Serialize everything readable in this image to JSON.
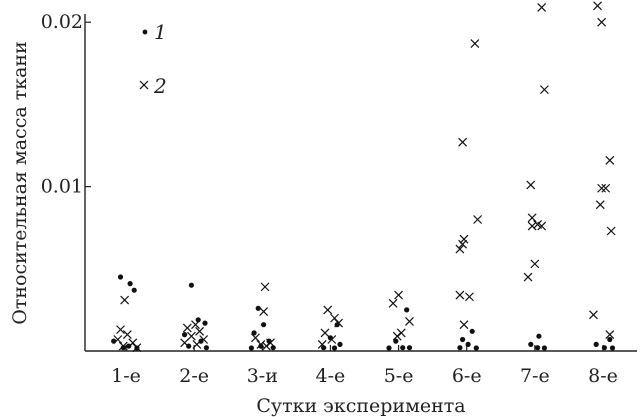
{
  "chart_data": {
    "type": "scatter",
    "xlabel": "Сутки эксперимента",
    "ylabel": "Относительная масса ткани",
    "categories": [
      "1-е",
      "2-е",
      "3-и",
      "4-е",
      "5-е",
      "6-е",
      "7-е",
      "8-е"
    ],
    "ylim": [
      0,
      0.0205
    ],
    "yticks": [
      {
        "value": 0.01,
        "label": "0.01"
      },
      {
        "value": 0.02,
        "label": "0.02"
      }
    ],
    "grid": false,
    "legend_position": "top-left",
    "series": [
      {
        "name": "1",
        "marker": "dot",
        "points": [
          {
            "x": "1-е",
            "y": 0.0045,
            "offset": -0.08
          },
          {
            "x": "1-е",
            "y": 0.0041,
            "offset": 0.06
          },
          {
            "x": "1-е",
            "y": 0.0037,
            "offset": 0.12
          },
          {
            "x": "1-е",
            "y": 0.0006,
            "offset": -0.18
          },
          {
            "x": "1-е",
            "y": 0.0003,
            "offset": 0.04
          },
          {
            "x": "1-е",
            "y": 0.0002,
            "offset": -0.04
          },
          {
            "x": "1-е",
            "y": 0.0001,
            "offset": 0.16
          },
          {
            "x": "2-е",
            "y": 0.004,
            "offset": -0.04
          },
          {
            "x": "2-е",
            "y": 0.0019,
            "offset": 0.06
          },
          {
            "x": "2-е",
            "y": 0.0017,
            "offset": 0.16
          },
          {
            "x": "2-е",
            "y": 0.001,
            "offset": -0.14
          },
          {
            "x": "2-е",
            "y": 0.0006,
            "offset": 0.1
          },
          {
            "x": "2-е",
            "y": 0.0003,
            "offset": -0.08
          },
          {
            "x": "2-е",
            "y": 0.0002,
            "offset": 0.18
          },
          {
            "x": "3-и",
            "y": 0.0026,
            "offset": -0.06
          },
          {
            "x": "3-и",
            "y": 0.0016,
            "offset": 0.02
          },
          {
            "x": "3-и",
            "y": 0.0011,
            "offset": -0.12
          },
          {
            "x": "3-и",
            "y": 0.0006,
            "offset": 0.1
          },
          {
            "x": "3-и",
            "y": 0.0003,
            "offset": -0.02
          },
          {
            "x": "3-и",
            "y": 0.0002,
            "offset": 0.16
          },
          {
            "x": "3-и",
            "y": 0.0001,
            "offset": -0.16
          },
          {
            "x": "4-е",
            "y": 0.0016,
            "offset": 0.1
          },
          {
            "x": "4-е",
            "y": 0.0008,
            "offset": 0.0
          },
          {
            "x": "4-е",
            "y": 0.0004,
            "offset": 0.14
          },
          {
            "x": "4-е",
            "y": 0.0002,
            "offset": -0.1
          },
          {
            "x": "4-е",
            "y": 0.0001,
            "offset": 0.06
          },
          {
            "x": "5-е",
            "y": 0.0025,
            "offset": 0.12
          },
          {
            "x": "5-е",
            "y": 0.0006,
            "offset": -0.04
          },
          {
            "x": "5-е",
            "y": 0.0002,
            "offset": 0.06
          },
          {
            "x": "5-е",
            "y": 0.0002,
            "offset": 0.16
          },
          {
            "x": "5-е",
            "y": 0.0001,
            "offset": -0.14
          },
          {
            "x": "6-е",
            "y": 0.0012,
            "offset": 0.08
          },
          {
            "x": "6-е",
            "y": 0.0007,
            "offset": -0.06
          },
          {
            "x": "6-е",
            "y": 0.0004,
            "offset": 0.02
          },
          {
            "x": "6-е",
            "y": 0.0002,
            "offset": -0.1
          },
          {
            "x": "6-е",
            "y": 0.0001,
            "offset": 0.14
          },
          {
            "x": "7-е",
            "y": 0.0009,
            "offset": 0.06
          },
          {
            "x": "7-е",
            "y": 0.0004,
            "offset": -0.06
          },
          {
            "x": "7-е",
            "y": 0.0002,
            "offset": 0.04
          },
          {
            "x": "7-е",
            "y": 0.0001,
            "offset": 0.14
          },
          {
            "x": "8-е",
            "y": 0.0007,
            "offset": 0.1
          },
          {
            "x": "8-е",
            "y": 0.0004,
            "offset": -0.1
          },
          {
            "x": "8-е",
            "y": 0.0002,
            "offset": 0.02
          },
          {
            "x": "8-е",
            "y": 0.0001,
            "offset": 0.14
          }
        ]
      },
      {
        "name": "2",
        "marker": "cross",
        "points": [
          {
            "x": "1-е",
            "y": 0.0031,
            "offset": -0.02
          },
          {
            "x": "1-е",
            "y": 0.0013,
            "offset": -0.08
          },
          {
            "x": "1-е",
            "y": 0.001,
            "offset": 0.02
          },
          {
            "x": "1-е",
            "y": 0.0007,
            "offset": -0.12
          },
          {
            "x": "1-е",
            "y": 0.0005,
            "offset": 0.1
          },
          {
            "x": "1-е",
            "y": 0.0003,
            "offset": -0.04
          },
          {
            "x": "1-е",
            "y": 0.0002,
            "offset": 0.16
          },
          {
            "x": "2-е",
            "y": 0.0016,
            "offset": 0.02
          },
          {
            "x": "2-е",
            "y": 0.0014,
            "offset": -0.1
          },
          {
            "x": "2-е",
            "y": 0.0012,
            "offset": 0.08
          },
          {
            "x": "2-е",
            "y": 0.0009,
            "offset": -0.04
          },
          {
            "x": "2-е",
            "y": 0.0007,
            "offset": 0.14
          },
          {
            "x": "2-е",
            "y": 0.0005,
            "offset": -0.14
          },
          {
            "x": "2-е",
            "y": 0.0004,
            "offset": 0.04
          },
          {
            "x": "3-и",
            "y": 0.0039,
            "offset": 0.04
          },
          {
            "x": "3-и",
            "y": 0.0024,
            "offset": 0.02
          },
          {
            "x": "3-и",
            "y": 0.0008,
            "offset": -0.1
          },
          {
            "x": "3-и",
            "y": 0.0005,
            "offset": 0.12
          },
          {
            "x": "3-и",
            "y": 0.0004,
            "offset": -0.02
          },
          {
            "x": "3-и",
            "y": 0.0003,
            "offset": 0.06
          },
          {
            "x": "4-е",
            "y": 0.0025,
            "offset": -0.04
          },
          {
            "x": "4-е",
            "y": 0.002,
            "offset": 0.06
          },
          {
            "x": "4-е",
            "y": 0.0017,
            "offset": 0.12
          },
          {
            "x": "4-е",
            "y": 0.0011,
            "offset": -0.08
          },
          {
            "x": "4-е",
            "y": 0.0007,
            "offset": 0.02
          },
          {
            "x": "4-е",
            "y": 0.0004,
            "offset": -0.12
          },
          {
            "x": "5-е",
            "y": 0.0034,
            "offset": 0.0
          },
          {
            "x": "5-е",
            "y": 0.0029,
            "offset": -0.08
          },
          {
            "x": "5-е",
            "y": 0.0018,
            "offset": 0.16
          },
          {
            "x": "5-е",
            "y": 0.0011,
            "offset": 0.04
          },
          {
            "x": "5-е",
            "y": 0.0009,
            "offset": -0.02
          },
          {
            "x": "6-е",
            "y": 0.0187,
            "offset": 0.12
          },
          {
            "x": "6-е",
            "y": 0.0127,
            "offset": -0.06
          },
          {
            "x": "6-е",
            "y": 0.008,
            "offset": 0.16
          },
          {
            "x": "6-е",
            "y": 0.0068,
            "offset": -0.04
          },
          {
            "x": "6-е",
            "y": 0.0065,
            "offset": -0.06
          },
          {
            "x": "6-е",
            "y": 0.0062,
            "offset": -0.1
          },
          {
            "x": "6-е",
            "y": 0.0034,
            "offset": -0.1
          },
          {
            "x": "6-е",
            "y": 0.0033,
            "offset": 0.04
          },
          {
            "x": "6-е",
            "y": 0.0016,
            "offset": -0.04
          },
          {
            "x": "7-е",
            "y": 0.0209,
            "offset": 0.1
          },
          {
            "x": "7-е",
            "y": 0.0159,
            "offset": 0.14
          },
          {
            "x": "7-е",
            "y": 0.0101,
            "offset": -0.06
          },
          {
            "x": "7-е",
            "y": 0.0081,
            "offset": -0.04
          },
          {
            "x": "7-е",
            "y": 0.0077,
            "offset": 0.04
          },
          {
            "x": "7-е",
            "y": 0.0076,
            "offset": 0.1
          },
          {
            "x": "7-е",
            "y": 0.0076,
            "offset": -0.04
          },
          {
            "x": "7-е",
            "y": 0.0053,
            "offset": 0.0
          },
          {
            "x": "7-е",
            "y": 0.0045,
            "offset": -0.1
          },
          {
            "x": "8-е",
            "y": 0.021,
            "offset": -0.08
          },
          {
            "x": "8-е",
            "y": 0.02,
            "offset": -0.02
          },
          {
            "x": "8-е",
            "y": 0.0116,
            "offset": 0.1
          },
          {
            "x": "8-е",
            "y": 0.0099,
            "offset": -0.02
          },
          {
            "x": "8-е",
            "y": 0.0099,
            "offset": 0.04
          },
          {
            "x": "8-е",
            "y": 0.0089,
            "offset": -0.04
          },
          {
            "x": "8-е",
            "y": 0.0073,
            "offset": 0.12
          },
          {
            "x": "8-е",
            "y": 0.0022,
            "offset": -0.14
          },
          {
            "x": "8-е",
            "y": 0.001,
            "offset": 0.1
          }
        ]
      }
    ]
  }
}
